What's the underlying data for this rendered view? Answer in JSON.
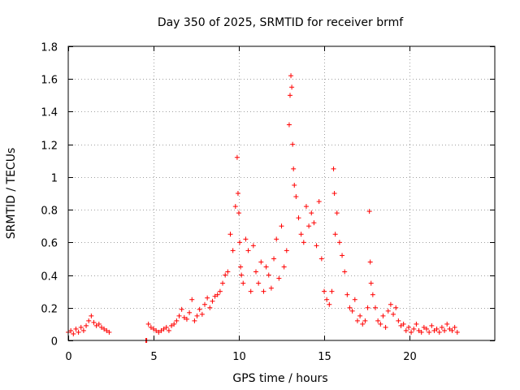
{
  "chart_data": {
    "type": "scatter",
    "title": "Day 350 of 2025, SRMTID for receiver brmf",
    "xlabel": "GPS time / hours",
    "ylabel": "SRMTID / TECUs",
    "xlim": [
      0,
      25
    ],
    "ylim": [
      0,
      1.8
    ],
    "xticks": [
      0,
      5,
      10,
      15,
      20
    ],
    "xtick_labels": [
      "0",
      "5",
      "10",
      "15",
      "20"
    ],
    "yticks": [
      0,
      0.2,
      0.4,
      0.6,
      0.8,
      1.0,
      1.2,
      1.4,
      1.6,
      1.8
    ],
    "ytick_labels": [
      "0",
      "0.2",
      "0.4",
      "0.6",
      "0.8",
      "1",
      "1.2",
      "1.4",
      "1.6",
      "1.8"
    ],
    "grid": true,
    "marker": "+",
    "color": "#ff0000",
    "series": [
      {
        "name": "SRMTID",
        "x": [
          0.0,
          0.15,
          0.3,
          0.45,
          0.6,
          0.75,
          0.9,
          1.05,
          1.2,
          1.35,
          1.5,
          1.65,
          1.8,
          1.95,
          2.1,
          2.25,
          2.4,
          4.55,
          4.6,
          4.7,
          4.85,
          5.0,
          5.15,
          5.3,
          5.45,
          5.6,
          5.75,
          5.9,
          6.05,
          6.2,
          6.35,
          6.5,
          6.65,
          6.8,
          6.95,
          7.1,
          7.25,
          7.4,
          7.55,
          7.7,
          7.85,
          8.0,
          8.15,
          8.3,
          8.45,
          8.6,
          8.75,
          8.9,
          9.05,
          9.2,
          9.35,
          9.5,
          9.65,
          9.8,
          9.9,
          9.95,
          10.0,
          10.05,
          10.1,
          10.15,
          10.25,
          10.4,
          10.55,
          10.7,
          10.85,
          11.0,
          11.15,
          11.3,
          11.45,
          11.6,
          11.75,
          11.9,
          12.05,
          12.2,
          12.35,
          12.5,
          12.65,
          12.8,
          12.95,
          13.0,
          13.05,
          13.1,
          13.15,
          13.2,
          13.25,
          13.35,
          13.5,
          13.65,
          13.8,
          13.95,
          14.1,
          14.25,
          14.4,
          14.55,
          14.7,
          14.85,
          15.0,
          15.15,
          15.3,
          15.45,
          15.55,
          15.6,
          15.65,
          15.75,
          15.9,
          16.05,
          16.2,
          16.35,
          16.5,
          16.65,
          16.8,
          16.95,
          17.1,
          17.25,
          17.4,
          17.55,
          17.65,
          17.7,
          17.75,
          17.85,
          18.0,
          18.15,
          18.3,
          18.45,
          18.6,
          18.75,
          18.9,
          19.05,
          19.2,
          19.35,
          19.5,
          19.65,
          19.8,
          19.95,
          20.1,
          20.25,
          20.4,
          20.55,
          20.7,
          20.85,
          21.0,
          21.15,
          21.3,
          21.45,
          21.6,
          21.75,
          21.9,
          22.05,
          22.2,
          22.35,
          22.5,
          22.65,
          22.8
        ],
        "y": [
          0.05,
          0.06,
          0.04,
          0.07,
          0.05,
          0.08,
          0.06,
          0.09,
          0.12,
          0.15,
          0.11,
          0.09,
          0.1,
          0.08,
          0.07,
          0.06,
          0.05,
          0.0,
          0.0,
          0.1,
          0.08,
          0.07,
          0.06,
          0.05,
          0.06,
          0.07,
          0.08,
          0.06,
          0.09,
          0.1,
          0.12,
          0.15,
          0.19,
          0.14,
          0.13,
          0.17,
          0.25,
          0.12,
          0.15,
          0.19,
          0.16,
          0.22,
          0.26,
          0.2,
          0.24,
          0.27,
          0.28,
          0.3,
          0.35,
          0.4,
          0.42,
          0.65,
          0.55,
          0.82,
          1.12,
          0.9,
          0.78,
          0.6,
          0.45,
          0.4,
          0.35,
          0.62,
          0.55,
          0.3,
          0.58,
          0.42,
          0.35,
          0.48,
          0.3,
          0.45,
          0.4,
          0.32,
          0.5,
          0.62,
          0.38,
          0.7,
          0.45,
          0.55,
          1.32,
          1.5,
          1.62,
          1.55,
          1.2,
          1.05,
          0.95,
          0.88,
          0.75,
          0.65,
          0.6,
          0.82,
          0.7,
          0.78,
          0.72,
          0.58,
          0.85,
          0.5,
          0.3,
          0.25,
          0.22,
          0.3,
          1.05,
          0.9,
          0.65,
          0.78,
          0.6,
          0.52,
          0.42,
          0.28,
          0.2,
          0.18,
          0.25,
          0.12,
          0.15,
          0.1,
          0.12,
          0.2,
          0.79,
          0.48,
          0.35,
          0.28,
          0.2,
          0.12,
          0.1,
          0.15,
          0.08,
          0.18,
          0.22,
          0.16,
          0.2,
          0.12,
          0.09,
          0.1,
          0.06,
          0.08,
          0.05,
          0.07,
          0.1,
          0.06,
          0.05,
          0.08,
          0.07,
          0.05,
          0.09,
          0.06,
          0.07,
          0.05,
          0.08,
          0.06,
          0.1,
          0.07,
          0.06,
          0.08,
          0.05
        ]
      }
    ]
  }
}
